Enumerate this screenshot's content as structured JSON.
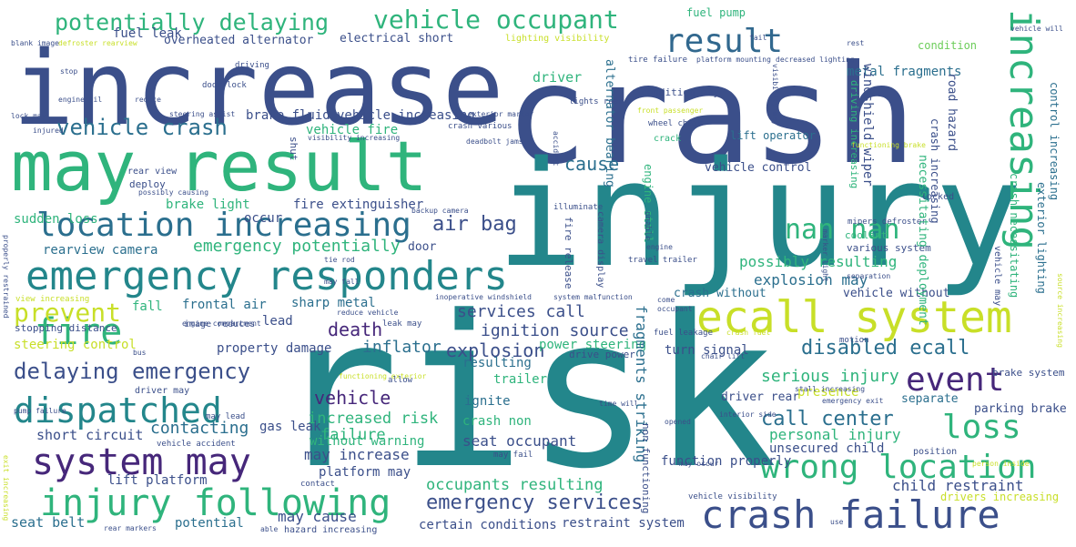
{
  "palette": {
    "navy": "#3b4f8a",
    "teal": "#23868b",
    "green": "#2fb47c",
    "lime": "#c8df28",
    "purple": "#46277a",
    "blue": "#31688e",
    "light_green": "#6ccd5a",
    "yellow_green": "#a5db36"
  },
  "words": [
    {
      "text": "risk",
      "color": "#23868b"
    },
    {
      "text": "increase",
      "color": "#3b4f8a"
    },
    {
      "text": "crash",
      "color": "#3b4f8a"
    },
    {
      "text": "injury",
      "color": "#23868b"
    },
    {
      "text": "may result",
      "color": "#2fb47c"
    },
    {
      "text": "emergency responders",
      "color": "#23868b"
    },
    {
      "text": "ecall system",
      "color": "#c8df28"
    },
    {
      "text": "location increasing",
      "color": "#2b6f8e"
    },
    {
      "text": "system may",
      "color": "#46277a"
    },
    {
      "text": "injury following",
      "color": "#2fb47c"
    },
    {
      "text": "crash failure",
      "color": "#3b4f8a"
    },
    {
      "text": "wrong location",
      "color": "#2fb47c"
    },
    {
      "text": "increasing",
      "color": "#2fb47c"
    },
    {
      "text": "result",
      "color": "#31688e"
    },
    {
      "text": "vehicle occupant",
      "color": "#2fb47c"
    },
    {
      "text": "potentially delaying",
      "color": "#2fb47c"
    },
    {
      "text": "fire",
      "color": "#2fb47c"
    },
    {
      "text": "dispatched",
      "color": "#23868b"
    },
    {
      "text": "event",
      "color": "#46277a"
    },
    {
      "text": "loss",
      "color": "#2fb47c"
    },
    {
      "text": "nan nan",
      "color": "#2fb47c"
    },
    {
      "text": "delaying emergency",
      "color": "#3b4f8a"
    },
    {
      "text": "vehicle crash",
      "color": "#2b6f8e"
    },
    {
      "text": "prevent",
      "color": "#c8df28"
    },
    {
      "text": "disabled ecall",
      "color": "#2b6f8e"
    },
    {
      "text": "call center",
      "color": "#2b6f8e"
    },
    {
      "text": "emergency services",
      "color": "#3b4f8a"
    },
    {
      "text": "contacting",
      "color": "#2b6f8e"
    },
    {
      "text": "emergency potentially",
      "color": "#2fb47c"
    },
    {
      "text": "air bag",
      "color": "#3b4f8a"
    },
    {
      "text": "cause",
      "color": "#2b6f8e"
    },
    {
      "text": "death",
      "color": "#46277a"
    },
    {
      "text": "vehicle",
      "color": "#46277a"
    },
    {
      "text": "services call",
      "color": "#3b4f8a"
    },
    {
      "text": "ignition source",
      "color": "#3b4f8a"
    },
    {
      "text": "explosion",
      "color": "#3b4f8a"
    },
    {
      "text": "inflator",
      "color": "#2b6f8e"
    },
    {
      "text": "serious injury",
      "color": "#2fb47c"
    },
    {
      "text": "possibly resulting",
      "color": "#2fb47c"
    },
    {
      "text": "explosion may",
      "color": "#2b6f8e"
    },
    {
      "text": "increased risk",
      "color": "#2fb47c"
    },
    {
      "text": "failure",
      "color": "#2fb47c"
    },
    {
      "text": "may increase",
      "color": "#3b4f8a"
    },
    {
      "text": "personal injury",
      "color": "#2fb47c"
    },
    {
      "text": "unsecured child",
      "color": "#3b4f8a"
    },
    {
      "text": "seat occupant",
      "color": "#3b4f8a"
    },
    {
      "text": "occupants resulting",
      "color": "#2fb47c"
    },
    {
      "text": "child restraint",
      "color": "#3b4f8a"
    },
    {
      "text": "restraint system",
      "color": "#3b4f8a"
    },
    {
      "text": "certain conditions",
      "color": "#3b4f8a"
    },
    {
      "text": "function properly",
      "color": "#3b4f8a"
    },
    {
      "text": "platform may",
      "color": "#3b4f8a"
    },
    {
      "text": "may cause",
      "color": "#3b4f8a"
    },
    {
      "text": "potential",
      "color": "#2b6f8e"
    },
    {
      "text": "seat belt",
      "color": "#2b6f8e"
    },
    {
      "text": "lift platform",
      "color": "#3b4f8a"
    },
    {
      "text": "short circuit",
      "color": "#3b4f8a"
    },
    {
      "text": "gas leak",
      "color": "#3b4f8a"
    },
    {
      "text": "without warning",
      "color": "#2fb47c"
    },
    {
      "text": "crash non",
      "color": "#2fb47c"
    },
    {
      "text": "ignite",
      "color": "#2b6f8e"
    },
    {
      "text": "trailer",
      "color": "#2fb47c"
    },
    {
      "text": "resulting",
      "color": "#2b6f8e"
    },
    {
      "text": "power steering",
      "color": "#2fb47c"
    },
    {
      "text": "property damage",
      "color": "#3b4f8a"
    },
    {
      "text": "steering control",
      "color": "#c8df28"
    },
    {
      "text": "fall",
      "color": "#2fb47c"
    },
    {
      "text": "frontal air",
      "color": "#2b6f8e"
    },
    {
      "text": "sharp metal",
      "color": "#2b6f8e"
    },
    {
      "text": "lead",
      "color": "#3b4f8a"
    },
    {
      "text": "rearview camera",
      "color": "#2b6f8e"
    },
    {
      "text": "brake light",
      "color": "#2fb47c"
    },
    {
      "text": "fire extinguisher",
      "color": "#3b4f8a"
    },
    {
      "text": "occur",
      "color": "#3b4f8a"
    },
    {
      "text": "sudden loss",
      "color": "#2fb47c"
    },
    {
      "text": "brake fluid",
      "color": "#3b4f8a"
    },
    {
      "text": "vehicle increasing",
      "color": "#3b4f8a"
    },
    {
      "text": "vehicle fire",
      "color": "#2fb47c"
    },
    {
      "text": "driver",
      "color": "#2fb47c"
    },
    {
      "text": "metal fragments",
      "color": "#2b6f8e"
    },
    {
      "text": "condition",
      "color": "#6ccd5a"
    },
    {
      "text": "road hazard",
      "color": "#3b4f8a"
    },
    {
      "text": "crash increasing",
      "color": "#3b4f8a"
    },
    {
      "text": "vehicle control",
      "color": "#3b4f8a"
    },
    {
      "text": "lift operator",
      "color": "#2b6f8e"
    },
    {
      "text": "engine stall",
      "color": "#2fb47c"
    },
    {
      "text": "crash without",
      "color": "#2b6f8e"
    },
    {
      "text": "vehicle without",
      "color": "#3b4f8a"
    },
    {
      "text": "turn signal",
      "color": "#3b4f8a"
    },
    {
      "text": "driver rear",
      "color": "#3b4f8a"
    },
    {
      "text": "presence",
      "color": "#c8df28"
    },
    {
      "text": "separate",
      "color": "#2b6f8e"
    },
    {
      "text": "parking brake",
      "color": "#3b4f8a"
    },
    {
      "text": "brake system",
      "color": "#3b4f8a"
    },
    {
      "text": "electrical short",
      "color": "#3b4f8a"
    },
    {
      "text": "overheated alternator",
      "color": "#3b4f8a"
    },
    {
      "text": "fuel leak",
      "color": "#3b4f8a"
    },
    {
      "text": "fuel pump",
      "color": "#2fb47c"
    },
    {
      "text": "coolant",
      "color": "#2fb47c"
    },
    {
      "text": "various system",
      "color": "#3b4f8a"
    },
    {
      "text": "emergency potentially",
      "color": "#2fb47c"
    },
    {
      "text": "door",
      "color": "#3b4f8a"
    },
    {
      "text": "deploy",
      "color": "#3b4f8a"
    },
    {
      "text": "rear view",
      "color": "#3b4f8a"
    },
    {
      "text": "stopping distance",
      "color": "#3b4f8a"
    },
    {
      "text": "image reduces",
      "color": "#3b4f8a"
    },
    {
      "text": "driver may",
      "color": "#3b4f8a"
    },
    {
      "text": "may lead",
      "color": "#3b4f8a"
    },
    {
      "text": "vehicle accident",
      "color": "#3b4f8a"
    },
    {
      "text": "position",
      "color": "#3b4f8a"
    },
    {
      "text": "drivers increasing",
      "color": "#c8df28"
    },
    {
      "text": "lighting visibility",
      "color": "#c8df28"
    },
    {
      "text": "crash various",
      "color": "#3b4f8a"
    },
    {
      "text": "exterior marker",
      "color": "#3b4f8a"
    },
    {
      "text": "deadbolt jams",
      "color": "#3b4f8a"
    },
    {
      "text": "crack",
      "color": "#2fb47c"
    },
    {
      "text": "tire failure",
      "color": "#3b4f8a"
    },
    {
      "text": "platform mounting",
      "color": "#3b4f8a"
    },
    {
      "text": "decreased lighting",
      "color": "#3b4f8a"
    },
    {
      "text": "condition may",
      "color": "#3b4f8a"
    },
    {
      "text": "lights rear",
      "color": "#3b4f8a"
    },
    {
      "text": "wheel chair",
      "color": "#3b4f8a"
    },
    {
      "text": "front passenger",
      "color": "#c8df28"
    },
    {
      "text": "fire release",
      "color": "#3b4f8a"
    },
    {
      "text": "drive power",
      "color": "#3b4f8a"
    },
    {
      "text": "fuel leakage",
      "color": "#3b4f8a"
    },
    {
      "text": "crash fuel",
      "color": "#c8df28"
    },
    {
      "text": "chair lift",
      "color": "#3b4f8a"
    },
    {
      "text": "stall increasing",
      "color": "#3b4f8a"
    },
    {
      "text": "time will",
      "color": "#3b4f8a"
    },
    {
      "text": "interior side",
      "color": "#3b4f8a"
    },
    {
      "text": "emergency exit",
      "color": "#3b4f8a"
    },
    {
      "text": "may occur",
      "color": "#3b4f8a"
    },
    {
      "text": "vehicle visibility",
      "color": "#3b4f8a"
    },
    {
      "text": "may fail",
      "color": "#3b4f8a"
    },
    {
      "text": "functioning exterior",
      "color": "#c8df28"
    },
    {
      "text": "allow",
      "color": "#3b4f8a"
    },
    {
      "text": "leak may",
      "color": "#3b4f8a"
    },
    {
      "text": "engine compartment",
      "color": "#3b4f8a"
    },
    {
      "text": "inoperative windshield",
      "color": "#3b4f8a"
    },
    {
      "text": "system malfunction",
      "color": "#3b4f8a"
    },
    {
      "text": "travel trailer",
      "color": "#3b4f8a"
    },
    {
      "text": "backup camera",
      "color": "#3b4f8a"
    },
    {
      "text": "illuminate",
      "color": "#3b4f8a"
    },
    {
      "text": "unable",
      "color": "#3b4f8a"
    },
    {
      "text": "motion",
      "color": "#3b4f8a"
    },
    {
      "text": "engine",
      "color": "#3b4f8a"
    },
    {
      "text": "mipers defroster",
      "color": "#3b4f8a"
    },
    {
      "text": "separation",
      "color": "#3b4f8a"
    },
    {
      "text": "locked",
      "color": "#3b4f8a"
    },
    {
      "text": "functioning brake",
      "color": "#c8df28"
    },
    {
      "text": "blank image",
      "color": "#3b4f8a"
    },
    {
      "text": "defroster rearview",
      "color": "#c8df28"
    },
    {
      "text": "stop",
      "color": "#3b4f8a"
    },
    {
      "text": "driving",
      "color": "#3b4f8a"
    },
    {
      "text": "door lock",
      "color": "#3b4f8a"
    },
    {
      "text": "engine oil",
      "color": "#3b4f8a"
    },
    {
      "text": "reduce",
      "color": "#3b4f8a"
    },
    {
      "text": "lock may",
      "color": "#3b4f8a"
    },
    {
      "text": "injured",
      "color": "#3b4f8a"
    },
    {
      "text": "steering assist",
      "color": "#3b4f8a"
    },
    {
      "text": "visibility increasing",
      "color": "#3b4f8a"
    },
    {
      "text": "possibly causing",
      "color": "#3b4f8a"
    },
    {
      "text": "view increasing",
      "color": "#c8df28"
    },
    {
      "text": "tie rod",
      "color": "#3b4f8a"
    },
    {
      "text": "may fall",
      "color": "#3b4f8a"
    },
    {
      "text": "reduce vehicle",
      "color": "#3b4f8a"
    },
    {
      "text": "pump failure",
      "color": "#3b4f8a"
    },
    {
      "text": "contact",
      "color": "#3b4f8a"
    },
    {
      "text": "able",
      "color": "#3b4f8a"
    },
    {
      "text": "hazard increasing",
      "color": "#3b4f8a"
    },
    {
      "text": "rear markers",
      "color": "#3b4f8a"
    },
    {
      "text": "bus",
      "color": "#3b4f8a"
    },
    {
      "text": "opened",
      "color": "#3b4f8a"
    },
    {
      "text": "use",
      "color": "#3b4f8a"
    },
    {
      "text": "rest",
      "color": "#3b4f8a"
    },
    {
      "text": "person inside",
      "color": "#c8df28"
    },
    {
      "text": "come",
      "color": "#3b4f8a"
    },
    {
      "text": "occupant",
      "color": "#3b4f8a"
    },
    {
      "text": "vehicle will",
      "color": "#3b4f8a"
    },
    {
      "text": "fail",
      "color": "#3b4f8a"
    },
    {
      "text": "fragments striking",
      "color": "#2b6f8e"
    },
    {
      "text": "alternator bearing",
      "color": "#2b6f8e"
    },
    {
      "text": "windshield wiper",
      "color": "#3b4f8a"
    },
    {
      "text": "driving increasing",
      "color": "#2fb47c"
    },
    {
      "text": "necessitating deployment",
      "color": "#2fb47c"
    },
    {
      "text": "crash necessitating",
      "color": "#2fb47c"
    },
    {
      "text": "control increasing",
      "color": "#2b6f8e"
    },
    {
      "text": "exterior lighting",
      "color": "#2b6f8e"
    },
    {
      "text": "non functioning",
      "color": "#3b4f8a"
    },
    {
      "text": "shut",
      "color": "#3b4f8a"
    },
    {
      "text": "vehicle may",
      "color": "#3b4f8a"
    },
    {
      "text": "visibility may",
      "color": "#3b4f8a"
    },
    {
      "text": "camera display",
      "color": "#3b4f8a"
    },
    {
      "text": "accident",
      "color": "#3b4f8a"
    },
    {
      "text": "properly restrained",
      "color": "#3b4f8a"
    },
    {
      "text": "exit increasing",
      "color": "#c8df28"
    },
    {
      "text": "source increasing",
      "color": "#c8df28"
    },
    {
      "text": "marker light",
      "color": "#3b4f8a"
    }
  ]
}
